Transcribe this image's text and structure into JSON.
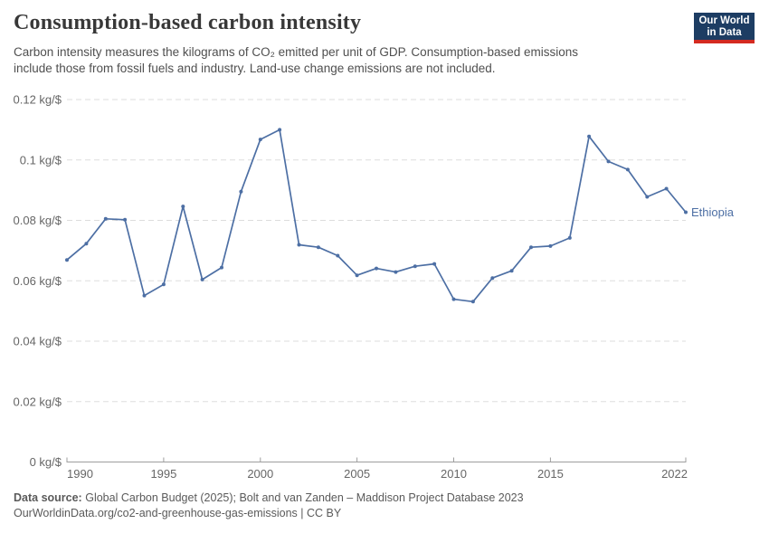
{
  "header": {
    "title": "Consumption-based carbon intensity",
    "subtitle_lines": [
      "Carbon intensity measures the kilograms of CO₂ emitted per unit of GDP. Consumption-based emissions",
      "include those from fossil fuels and industry. Land-use change emissions are not included."
    ]
  },
  "logo": {
    "line1": "Our World",
    "line2": "in Data",
    "bg_color": "#1d3d63",
    "accent_color": "#d42b21"
  },
  "chart_data": {
    "type": "line",
    "title": "Consumption-based carbon intensity",
    "xlabel": "",
    "ylabel": "kg/$",
    "ylim": [
      0,
      0.12
    ],
    "grid": "dashed horizontal gridlines",
    "legend_position": "end-of-line label",
    "x": [
      1990,
      1991,
      1992,
      1993,
      1994,
      1995,
      1996,
      1997,
      1998,
      1999,
      2000,
      2001,
      2002,
      2003,
      2004,
      2005,
      2006,
      2007,
      2008,
      2009,
      2010,
      2011,
      2012,
      2013,
      2014,
      2015,
      2016,
      2017,
      2018,
      2019,
      2020,
      2021,
      2022
    ],
    "series": [
      {
        "name": "Ethiopia",
        "color": "#4d6fa4",
        "values": [
          0.0669,
          0.0723,
          0.0805,
          0.0802,
          0.0551,
          0.0588,
          0.0846,
          0.0604,
          0.0644,
          0.0895,
          0.1068,
          0.11,
          0.0719,
          0.0711,
          0.0683,
          0.0618,
          0.0641,
          0.0629,
          0.0648,
          0.0656,
          0.0539,
          0.0531,
          0.0609,
          0.0633,
          0.0711,
          0.0715,
          0.0742,
          0.1078,
          0.0995,
          0.0968,
          0.0878,
          0.0905,
          0.0827
        ]
      }
    ],
    "yticks": [
      {
        "value": 0,
        "label": "0 kg/$"
      },
      {
        "value": 0.02,
        "label": "0.02 kg/$"
      },
      {
        "value": 0.04,
        "label": "0.04 kg/$"
      },
      {
        "value": 0.06,
        "label": "0.06 kg/$"
      },
      {
        "value": 0.08,
        "label": "0.08 kg/$"
      },
      {
        "value": 0.1,
        "label": "0.1 kg/$"
      },
      {
        "value": 0.12,
        "label": "0.12 kg/$"
      }
    ],
    "xticks": [
      1990,
      1995,
      2000,
      2005,
      2010,
      2015,
      2022
    ]
  },
  "footer": {
    "source_label": "Data source:",
    "source_text": "Global Carbon Budget (2025); Bolt and van Zanden – Maddison Project Database 2023",
    "license_line": "OurWorldinData.org/co2-and-greenhouse-gas-emissions | CC BY"
  },
  "colors": {
    "line": "#4d6fa4",
    "grid": "#dddddd",
    "axis": "#9e9e9e",
    "tick_text": "#666666"
  }
}
